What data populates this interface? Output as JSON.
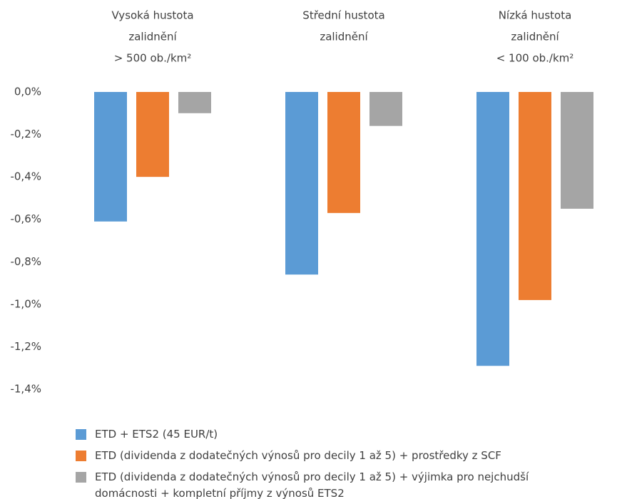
{
  "chart_data": {
    "type": "bar",
    "categories": [
      [
        "Vysoká hustota",
        "zalidnění",
        "> 500 ob./km²"
      ],
      [
        "Střední hustota",
        "zalidnění"
      ],
      [
        "Nízká hustota",
        "zalidnění",
        "< 100 ob./km²"
      ]
    ],
    "series": [
      {
        "name": "ETD + ETS2 (45 EUR/t)",
        "color": "#5b9bd5",
        "values": [
          -0.61,
          -0.86,
          -1.29
        ]
      },
      {
        "name": "ETD (dividenda z dodatečných výnosů pro decily 1 až 5) + prostředky z SCF",
        "color": "#ed7d31",
        "values": [
          -0.4,
          -0.57,
          -0.98
        ]
      },
      {
        "name": "ETD (dividenda z dodatečných výnosů pro decily 1 až 5) + výjimka pro nejchudší domácnosti + kompletní příjmy z výnosů ETS2",
        "color": "#a5a5a5",
        "values": [
          -0.1,
          -0.16,
          -0.55
        ]
      }
    ],
    "ylim": [
      -1.4,
      0
    ],
    "yticks": [
      {
        "value": 0,
        "label": "0,0%"
      },
      {
        "value": -0.2,
        "label": "-0,2%"
      },
      {
        "value": -0.4,
        "label": "-0,4%"
      },
      {
        "value": -0.6,
        "label": "-0,6%"
      },
      {
        "value": -0.8,
        "label": "-0,8%"
      },
      {
        "value": -1.0,
        "label": "-1,0%"
      },
      {
        "value": -1.2,
        "label": "-1,2%"
      },
      {
        "value": -1.4,
        "label": "-1,4%"
      }
    ],
    "legend": "bottom"
  }
}
